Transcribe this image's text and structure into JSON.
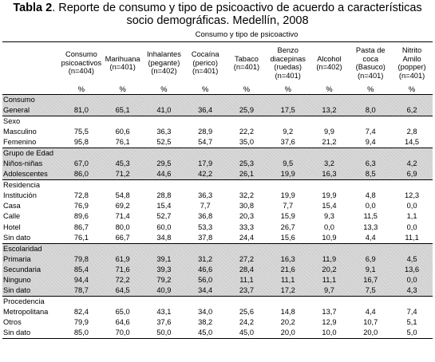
{
  "title": {
    "bold": "Tabla 2",
    "rest": ". Reporte de consumo y tipo de psicoactivo de acuerdo a características socio demográficas. Medellín, 2008"
  },
  "group_header": "Consumo y tipo de psicoactivo",
  "columns": [
    "Consumo psicoactivos (n=404)",
    "Marihuana (n=401)",
    "Inhalantes (pegante) (n=402)",
    "Cocaína (perico) (n=401)",
    "Tabaco (n=401)",
    "Benzo diacepinas (ruedas) (n=401)",
    "Alcohol (n=402)",
    "Pasta de coca (Basuco) (n=401)",
    "Nitrito Amilo (popper) (n=401)"
  ],
  "unit": "%",
  "sections": [
    {
      "shade": true,
      "rows": [
        {
          "label": "Consumo",
          "values": []
        },
        {
          "label": "General",
          "values": [
            "81,0",
            "65,1",
            "41,0",
            "36,4",
            "25,9",
            "17,5",
            "13,2",
            "8,0",
            "6,2"
          ]
        }
      ]
    },
    {
      "shade": false,
      "rows": [
        {
          "label": "Sexo",
          "values": []
        },
        {
          "label": "Masculino",
          "values": [
            "75,5",
            "60,6",
            "36,3",
            "28,9",
            "22,2",
            "9,2",
            "9,9",
            "7,4",
            "2,8"
          ]
        },
        {
          "label": "Femenino",
          "values": [
            "95,8",
            "76,1",
            "52,5",
            "54,7",
            "35,0",
            "37,6",
            "21,2",
            "9,4",
            "14,5"
          ]
        }
      ]
    },
    {
      "shade": true,
      "rows": [
        {
          "label": "Grupo de Edad",
          "values": []
        },
        {
          "label": "Niños-niñas",
          "values": [
            "67,0",
            "45,3",
            "29,5",
            "17,9",
            "25,3",
            "9,5",
            "3,2",
            "6,3",
            "4,2"
          ]
        },
        {
          "label": "Adolescentes",
          "values": [
            "86,0",
            "71,2",
            "44,6",
            "42,2",
            "26,1",
            "19,9",
            "16,3",
            "8,5",
            "6,9"
          ]
        }
      ]
    },
    {
      "shade": false,
      "rows": [
        {
          "label": "Residencia",
          "values": []
        },
        {
          "label": "Institución",
          "values": [
            "72,8",
            "54,8",
            "28,8",
            "36,3",
            "32,2",
            "19,9",
            "19,9",
            "4,8",
            "12,3"
          ]
        },
        {
          "label": "Casa",
          "values": [
            "76,9",
            "69,2",
            "15,4",
            "7,7",
            "30,8",
            "7,7",
            "15,4",
            "0,0",
            "0,0"
          ]
        },
        {
          "label": "Calle",
          "values": [
            "89,6",
            "71,4",
            "52,7",
            "36,8",
            "20,3",
            "15,9",
            "9,3",
            "11,5",
            "1,1"
          ]
        },
        {
          "label": "Hotel",
          "values": [
            "86,7",
            "80,0",
            "60,0",
            "53,3",
            "33,3",
            "26,7",
            "0,0",
            "13,3",
            "0,0"
          ]
        },
        {
          "label": "Sin dato",
          "values": [
            "76,1",
            "66,7",
            "34,8",
            "37,8",
            "24,4",
            "15,6",
            "10,9",
            "4,4",
            "11,1"
          ]
        }
      ]
    },
    {
      "shade": true,
      "rows": [
        {
          "label": "Escolaridad",
          "values": []
        },
        {
          "label": "Primaria",
          "values": [
            "79,8",
            "61,9",
            "39,1",
            "31,2",
            "27,2",
            "16,3",
            "11,9",
            "6,9",
            "4,5"
          ]
        },
        {
          "label": "Secundaria",
          "values": [
            "85,4",
            "71,6",
            "39,3",
            "46,6",
            "28,4",
            "21,6",
            "20,2",
            "9,1",
            "13,6"
          ]
        },
        {
          "label": "Ninguno",
          "values": [
            "94,4",
            "72,2",
            "79,2",
            "56,0",
            "11,1",
            "11,1",
            "11,1",
            "16,7",
            "0,0"
          ]
        },
        {
          "label": "Sin dato",
          "values": [
            "78,7",
            "64,5",
            "40,9",
            "34,4",
            "23,7",
            "17,2",
            "9,7",
            "7,5",
            "4,3"
          ]
        }
      ]
    },
    {
      "shade": false,
      "rows": [
        {
          "label": "Procedencia",
          "values": []
        },
        {
          "label": "Metropolitana",
          "values": [
            "82,4",
            "65,0",
            "43,1",
            "34,0",
            "25,6",
            "14,8",
            "13,7",
            "4,4",
            "7,4"
          ]
        },
        {
          "label": "Otros",
          "values": [
            "79,9",
            "64,6",
            "37,6",
            "38,2",
            "24,2",
            "20,2",
            "12,9",
            "10,7",
            "5,1"
          ]
        },
        {
          "label": "Sin dato",
          "values": [
            "85,0",
            "70,0",
            "50,0",
            "45,0",
            "45,0",
            "20,0",
            "10,0",
            "20,0",
            "5,0"
          ]
        }
      ]
    }
  ]
}
